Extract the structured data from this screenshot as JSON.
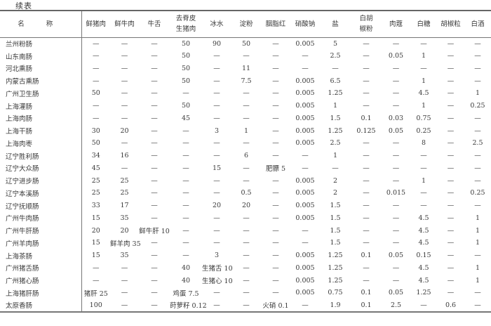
{
  "caption": "续表",
  "columns": [
    "名 称",
    "鲜猪肉",
    "鲜牛肉",
    "牛舌",
    "去脊皮\n生猪肉",
    "冰水",
    "淀粉",
    "胭脂红",
    "硝酸钠",
    "盐",
    "白胡\n椒粉",
    "肉蔻",
    "白糖",
    "胡椒粒",
    "白酒"
  ],
  "rows": [
    [
      "兰州粉肠",
      "—",
      "—",
      "—",
      "50",
      "90",
      "50",
      "—",
      "0.005",
      "5",
      "—",
      "—",
      "—",
      "—",
      "—"
    ],
    [
      "山东南肠",
      "—",
      "—",
      "—",
      "50",
      "—",
      "—",
      "—",
      "—",
      "2.5",
      "—",
      "0.05",
      "1",
      "—",
      "—"
    ],
    [
      "河北熏肠",
      "—",
      "—",
      "—",
      "50",
      "—",
      "11",
      "—",
      "—",
      "—",
      "—",
      "—",
      "—",
      "—",
      "—"
    ],
    [
      "内蒙古熏肠",
      "—",
      "—",
      "—",
      "50",
      "—",
      "7.5",
      "—",
      "0.005",
      "6.5",
      "—",
      "—",
      "1",
      "—",
      "—"
    ],
    [
      "广州卫生肠",
      "50",
      "—",
      "—",
      "—",
      "—",
      "—",
      "—",
      "0.005",
      "1.25",
      "—",
      "—",
      "4.5",
      "—",
      "1"
    ],
    [
      "上海灌肠",
      "—",
      "—",
      "—",
      "50",
      "—",
      "—",
      "—",
      "0.005",
      "1",
      "—",
      "—",
      "1",
      "—",
      "0.25"
    ],
    [
      "上海肉肠",
      "—",
      "—",
      "—",
      "45",
      "—",
      "—",
      "—",
      "0.005",
      "1.5",
      "0.1",
      "0.03",
      "0.75",
      "—",
      "—"
    ],
    [
      "上海干肠",
      "30",
      "20",
      "—",
      "—",
      "3",
      "1",
      "—",
      "0.005",
      "1.25",
      "0.125",
      "0.05",
      "0.25",
      "—",
      "—"
    ],
    [
      "上海肉枣",
      "50",
      "—",
      "—",
      "—",
      "—",
      "—",
      "—",
      "0.005",
      "2.5",
      "—",
      "—",
      "8",
      "—",
      "2.5"
    ],
    [
      "辽宁胜利肠",
      "34",
      "16",
      "—",
      "—",
      "—",
      "6",
      "—",
      "—",
      "1",
      "—",
      "—",
      "—",
      "—",
      "—"
    ],
    [
      "辽宁大众肠",
      "45",
      "—",
      "—",
      "—",
      "15",
      "—",
      "肥膘 5",
      "—",
      "—",
      "—",
      "—",
      "—",
      "—",
      "—"
    ],
    [
      "辽宁进步肠",
      "25",
      "25",
      "—",
      "—",
      "—",
      "—",
      "—",
      "0.005",
      "2",
      "—",
      "—",
      "1",
      "—",
      "—"
    ],
    [
      "辽宁本溪肠",
      "25",
      "25",
      "—",
      "—",
      "—",
      "0.5",
      "—",
      "0.005",
      "2",
      "—",
      "0.015",
      "—",
      "—",
      "0.25"
    ],
    [
      "辽宁抚顺肠",
      "33",
      "17",
      "—",
      "—",
      "20",
      "20",
      "—",
      "0.005",
      "1.5",
      "—",
      "—",
      "—",
      "—",
      "—"
    ],
    [
      "广州牛肉肠",
      "15",
      "35",
      "—",
      "—",
      "—",
      "—",
      "—",
      "0.005",
      "1.5",
      "—",
      "—",
      "4.5",
      "—",
      "1"
    ],
    [
      "广州牛肝肠",
      "20",
      "20",
      "鲜牛肝 10",
      "—",
      "—",
      "—",
      "—",
      "—",
      "1.5",
      "—",
      "—",
      "4.5",
      "—",
      "1"
    ],
    [
      "广州羊肉肠",
      "15",
      "鲜羊肉 35",
      "—",
      "—",
      "—",
      "—",
      "—",
      "—",
      "1.5",
      "—",
      "—",
      "4.5",
      "—",
      "1"
    ],
    [
      "上海茶肠",
      "15",
      "35",
      "—",
      "—",
      "3",
      "—",
      "—",
      "0.005",
      "1.25",
      "0.1",
      "0.05",
      "0.15",
      "—",
      "—"
    ],
    [
      "广州猪舌肠",
      "—",
      "—",
      "—",
      "40",
      "生猪舌 10",
      "—",
      "—",
      "0.005",
      "1.25",
      "—",
      "—",
      "4.5",
      "—",
      "1"
    ],
    [
      "广州猪心肠",
      "—",
      "—",
      "—",
      "40",
      "生猪心 10",
      "—",
      "—",
      "0.005",
      "1.25",
      "—",
      "—",
      "4.5",
      "—",
      "1"
    ],
    [
      "上海猪肝肠",
      "猪肝 25",
      "—",
      "—",
      "鸡蛋 7.5",
      "—",
      "—",
      "—",
      "0.005",
      "0.75",
      "0.1",
      "0.05",
      "1.25",
      "—",
      "—"
    ],
    [
      "太原香肠",
      "100",
      "—",
      "—",
      "莳萝籽 0.12",
      "—",
      "—",
      "火硝 0.1",
      "—",
      "1.9",
      "0.1",
      "2.5",
      "—",
      "0.6",
      "—"
    ]
  ]
}
